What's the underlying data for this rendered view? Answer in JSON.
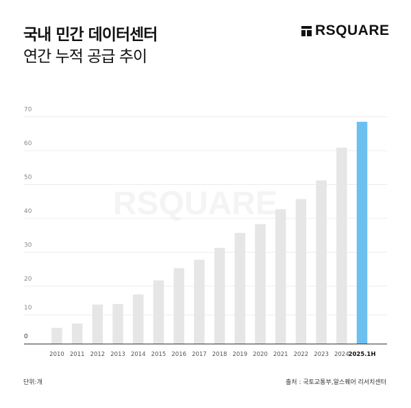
{
  "header": {
    "title": "국내 민간 데이터센터",
    "subtitle": "연간 누적 공급 추이",
    "logo_text": "RSQUARE"
  },
  "footer": {
    "unit": "단위:개",
    "source": "출처 : 국토교통부,알스퀘어 리서치센터"
  },
  "watermark": "RSQUARE",
  "colors": {
    "bar": "#e6e6e6",
    "highlight": "#6cc0f0",
    "grid": "#ececec",
    "axis": "#333333"
  },
  "chart_data": {
    "type": "bar",
    "title": "국내 민간 데이터센터 연간 누적 공급 추이",
    "categories": [
      "2010",
      "2011",
      "2012",
      "2013",
      "2014",
      "2015",
      "2016",
      "2017",
      "2018",
      "2019",
      "2020",
      "2021",
      "2022",
      "2023",
      "2024",
      "2025.1H"
    ],
    "values": [
      5.5,
      7,
      13.6,
      13.8,
      17.1,
      21.7,
      25.3,
      27.8,
      31.3,
      35.7,
      38.3,
      42.7,
      45.7,
      51.2,
      60.9,
      68.5
    ],
    "highlight_category": "2025.1H",
    "yticks": [
      0,
      10,
      20,
      30,
      40,
      50,
      60,
      70
    ],
    "ylim": [
      0,
      70
    ],
    "xlabel": "",
    "ylabel": "",
    "grid": true
  }
}
